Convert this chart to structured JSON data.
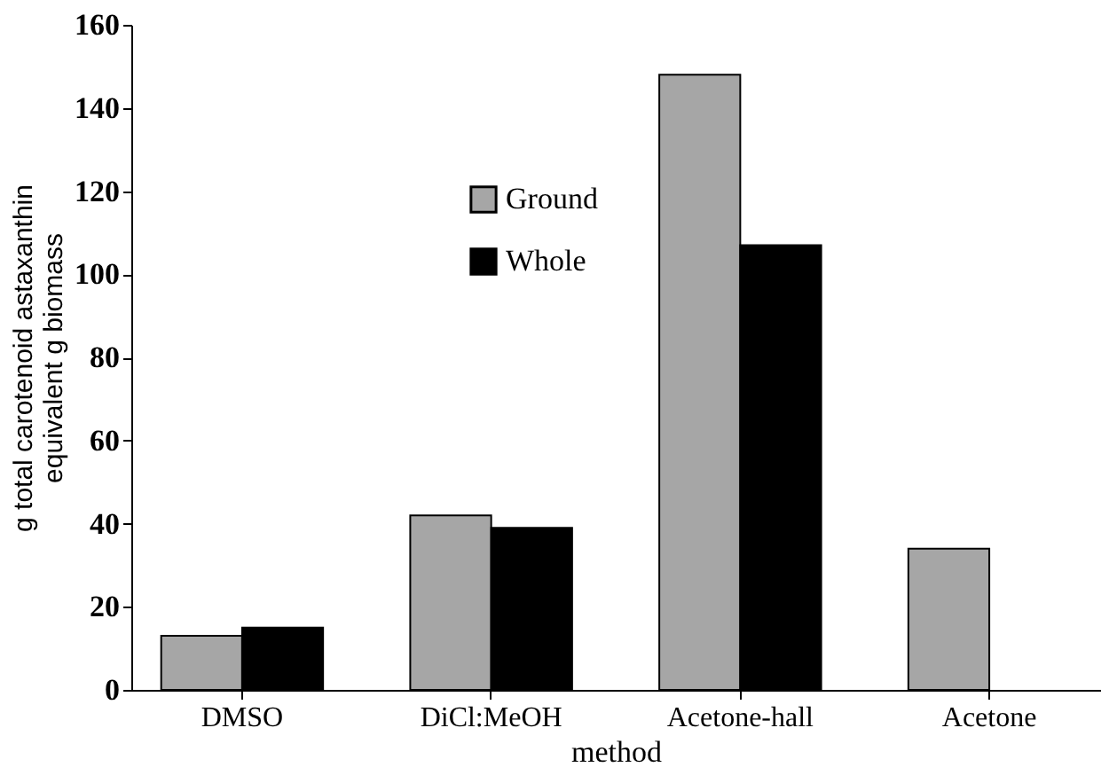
{
  "chart_data": {
    "type": "bar",
    "xlabel": "method",
    "ylabel": "g total carotenoid astaxanthin\nequivalent  g biomass",
    "categories": [
      "DMSO",
      "DiCl:MeOH",
      "Acetone-hall",
      "Acetone"
    ],
    "series": [
      {
        "name": "Ground",
        "color": "#a6a6a6",
        "values": [
          13,
          42,
          148,
          34
        ]
      },
      {
        "name": "Whole",
        "color": "#000000",
        "values": [
          15,
          39,
          107,
          null
        ]
      }
    ],
    "ylim": [
      0,
      160
    ],
    "yticks": [
      0,
      20,
      40,
      60,
      80,
      100,
      120,
      140,
      160
    ],
    "grid": false,
    "legend": "top"
  }
}
